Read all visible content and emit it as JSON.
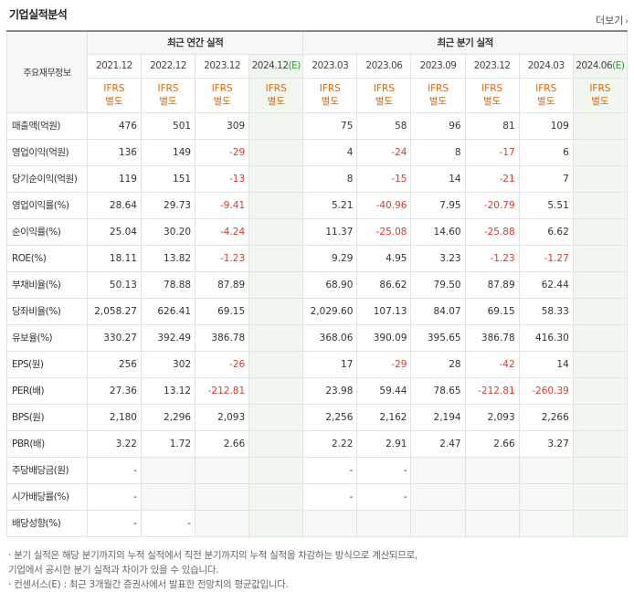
{
  "header": {
    "title": "기업실적분석",
    "more": "더보기"
  },
  "table": {
    "row_label_header": "주요재무정보",
    "annual_header": "최근 연간 실적",
    "quarter_header": "최근 분기 실적",
    "annual_periods": [
      "2021.12",
      "2022.12",
      "2023.12",
      "2024.12"
    ],
    "quarter_periods": [
      "2023.03",
      "2023.06",
      "2023.09",
      "2023.12",
      "2024.03",
      "2024.06"
    ],
    "estimate_mark": "(E)",
    "standard_line1": "IFRS",
    "standard_line2": "별도",
    "rows": [
      {
        "label": "매출액(억원)",
        "values": [
          "476",
          "501",
          "309",
          "",
          "75",
          "58",
          "96",
          "81",
          "109",
          ""
        ]
      },
      {
        "label": "영업이익(억원)",
        "values": [
          "136",
          "149",
          "-29",
          "",
          "4",
          "-24",
          "8",
          "-17",
          "6",
          ""
        ]
      },
      {
        "label": "당기순이익(억원)",
        "values": [
          "119",
          "151",
          "-13",
          "",
          "8",
          "-15",
          "14",
          "-21",
          "7",
          ""
        ]
      },
      {
        "label": "영업이익률(%)",
        "values": [
          "28.64",
          "29.73",
          "-9.41",
          "",
          "5.21",
          "-40.96",
          "7.95",
          "-20.79",
          "5.51",
          ""
        ]
      },
      {
        "label": "순이익률(%)",
        "values": [
          "25.04",
          "30.20",
          "-4.24",
          "",
          "11.37",
          "-25.08",
          "14.60",
          "-25.88",
          "6.62",
          ""
        ]
      },
      {
        "label": "ROE(%)",
        "values": [
          "18.11",
          "13.82",
          "-1.23",
          "",
          "9.29",
          "4.95",
          "3.23",
          "-1.23",
          "-1.27",
          ""
        ]
      },
      {
        "label": "부채비율(%)",
        "values": [
          "50.13",
          "78.88",
          "87.89",
          "",
          "68.90",
          "86.62",
          "79.50",
          "87.89",
          "62.44",
          ""
        ]
      },
      {
        "label": "당좌비율(%)",
        "values": [
          "2,058.27",
          "626.41",
          "69.15",
          "",
          "2,029.60",
          "107.13",
          "84.07",
          "69.15",
          "58.33",
          ""
        ]
      },
      {
        "label": "유보율(%)",
        "values": [
          "330.27",
          "392.49",
          "386.78",
          "",
          "368.06",
          "390.09",
          "395.65",
          "386.78",
          "416.30",
          ""
        ]
      },
      {
        "label": "EPS(원)",
        "values": [
          "256",
          "302",
          "-26",
          "",
          "17",
          "-29",
          "28",
          "-42",
          "14",
          ""
        ]
      },
      {
        "label": "PER(배)",
        "values": [
          "27.36",
          "13.12",
          "-212.81",
          "",
          "23.98",
          "59.44",
          "78.65",
          "-212.81",
          "-260.39",
          ""
        ]
      },
      {
        "label": "BPS(원)",
        "values": [
          "2,180",
          "2,296",
          "2,093",
          "",
          "2,256",
          "2,162",
          "2,194",
          "2,093",
          "2,266",
          ""
        ]
      },
      {
        "label": "PBR(배)",
        "values": [
          "3.22",
          "1.72",
          "2.66",
          "",
          "2.22",
          "2.91",
          "2.47",
          "2.66",
          "3.27",
          ""
        ]
      },
      {
        "label": "주당배당금(원)",
        "values": [
          "-",
          "",
          "",
          "",
          "-",
          "-",
          "",
          "",
          "",
          ""
        ]
      },
      {
        "label": "시가배당률(%)",
        "values": [
          "-",
          "",
          "",
          "",
          "-",
          "-",
          "",
          "",
          "",
          ""
        ]
      },
      {
        "label": "배당성향(%)",
        "values": [
          "-",
          "-",
          "",
          "",
          "",
          "",
          "",
          "",
          "",
          ""
        ]
      }
    ]
  },
  "notes": [
    "· 분기 실적은 해당 분기까지의 누적 실적에서 직전 분기까지의 누적 실적을 차감하는 방식으로 계산되므로,",
    "  기업에서 공시한 분기 실적과 차이가 있을 수 있습니다.",
    "· 컨센서스(E) : 최근 3개월간 증권사에서 발표한 전망치의 평균값입니다."
  ]
}
